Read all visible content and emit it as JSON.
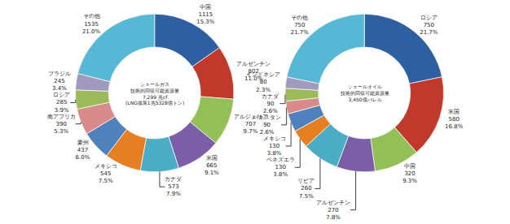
{
  "chart_data": [
    {
      "type": "pie",
      "title": "シェールガス\n技術的回収可能資源量\n7,299 兆cf\n(LNG換算1兆5328億トン)",
      "categories": [
        "中国",
        "アルゼンチン",
        "アルジェリア",
        "米国",
        "カナダ",
        "メキシコ",
        "豪州",
        "南アフリカ",
        "ロシア",
        "ブラジル",
        "その他"
      ],
      "values": [
        1115,
        802,
        707,
        665,
        573,
        545,
        437,
        390,
        285,
        245,
        1535
      ],
      "percents": [
        {
          "value": 15.3,
          "label": "15.3%"
        },
        {
          "value": 11.0,
          "label": "11.0%"
        },
        {
          "value": 9.7,
          "label": "9.7%"
        },
        {
          "value": 9.1,
          "label": "9.1%"
        },
        {
          "value": 7.9,
          "label": "7.9%"
        },
        {
          "value": 7.5,
          "label": "7.5%"
        },
        {
          "value": 6.0,
          "label": "6.0%"
        },
        {
          "value": 5.3,
          "label": "5.3%"
        },
        {
          "value": 3.9,
          "label": "3.9%"
        },
        {
          "value": 3.4,
          "label": "3.4%"
        },
        {
          "value": 21.0,
          "label": "21.0%"
        }
      ],
      "colors": [
        "#2E5FA3",
        "#C0392B",
        "#92C057",
        "#7B5EA7",
        "#4BACC6",
        "#E67E22",
        "#4F81BD",
        "#D98A8A",
        "#9BBB59",
        "#A09ABE",
        "#56B8D4"
      ],
      "data_labels": true
    },
    {
      "type": "pie",
      "title": "シェールオイル\n技術的回収可能資源量\n3,450億バレル",
      "categories": [
        "ロシア",
        "米国",
        "中国",
        "アルゼンチン",
        "リビア",
        "ベネズエラ",
        "メキシコ",
        "バキスタン",
        "カナダ",
        "インドネシア",
        "その他"
      ],
      "values": [
        750,
        580,
        320,
        270,
        260,
        130,
        130,
        90,
        90,
        80,
        750
      ],
      "percents": [
        {
          "value": 21.7,
          "label": "21.7%"
        },
        {
          "value": 16.8,
          "label": "16.8%"
        },
        {
          "value": 9.3,
          "label": "9.3%"
        },
        {
          "value": 7.8,
          "label": "7.8%"
        },
        {
          "value": 7.5,
          "label": "7.5%"
        },
        {
          "value": 3.8,
          "label": "3.8%"
        },
        {
          "value": 3.8,
          "label": "3.8%"
        },
        {
          "value": 2.6,
          "label": "2.6%"
        },
        {
          "value": 2.6,
          "label": "2.6%"
        },
        {
          "value": 2.3,
          "label": "2.3%"
        },
        {
          "value": 21.7,
          "label": "21.7%"
        }
      ],
      "colors": [
        "#2E5FA3",
        "#C0392B",
        "#92C057",
        "#7B5EA7",
        "#4BACC6",
        "#E67E22",
        "#4F81BD",
        "#D98A8A",
        "#9BBB59",
        "#A09ABE",
        "#56B8D4"
      ],
      "data_labels": true
    }
  ]
}
